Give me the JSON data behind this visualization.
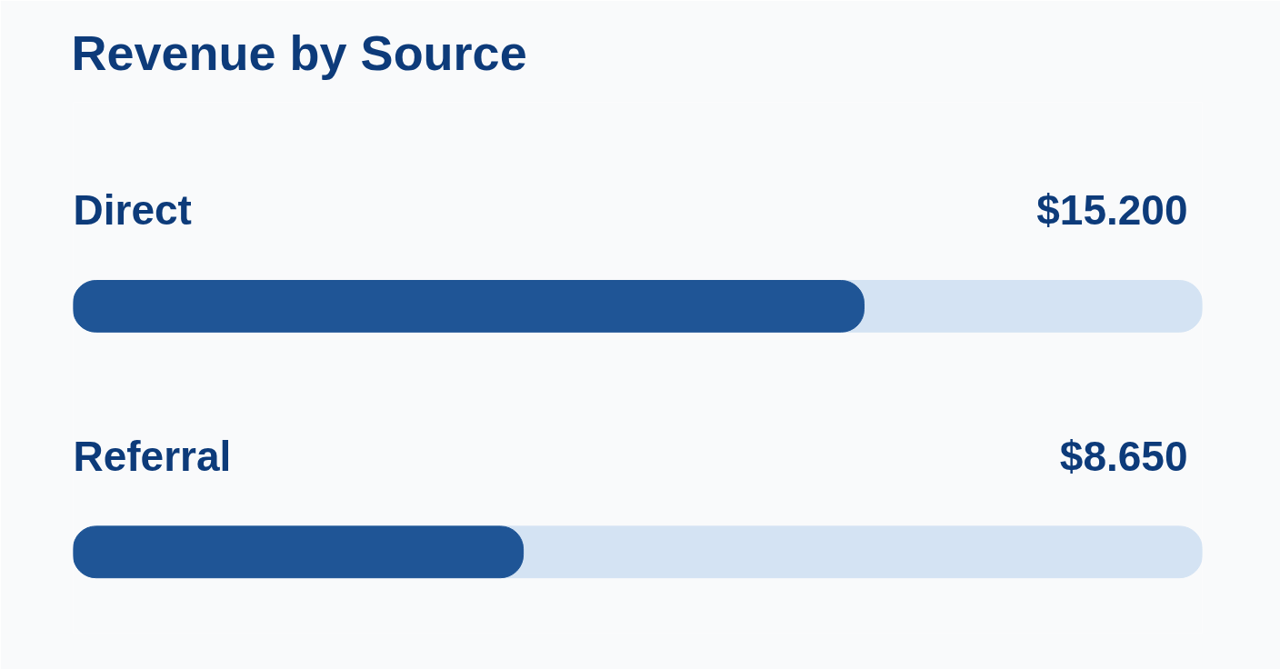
{
  "chart_data": {
    "type": "bar",
    "orientation": "horizontal",
    "title": "Revenue by Source",
    "categories": [
      "Direct",
      "Referral"
    ],
    "values": [
      15200,
      8650
    ],
    "value_labels": [
      "$15.200",
      "$8.650"
    ],
    "color": "#1f5596",
    "xlim": [
      0,
      21700
    ],
    "tick_labels": false,
    "grid": false
  }
}
